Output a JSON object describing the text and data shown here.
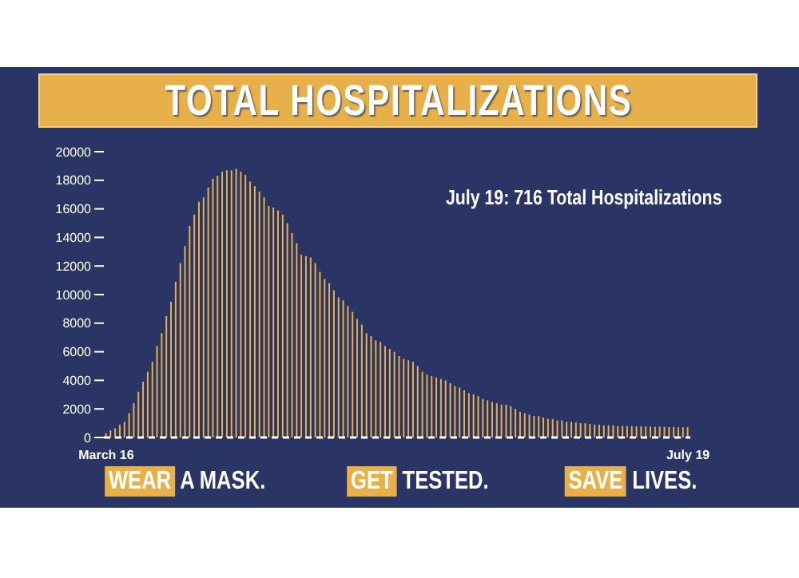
{
  "chart_data": {
    "type": "bar",
    "title": "TOTAL HOSPITALIZATIONS",
    "categories": [
      "March 16",
      null,
      null,
      null,
      null,
      null,
      null,
      null,
      null,
      null,
      null,
      null,
      null,
      null,
      null,
      null,
      null,
      null,
      null,
      null,
      null,
      null,
      null,
      null,
      null,
      null,
      null,
      null,
      null,
      null,
      null,
      null,
      null,
      null,
      null,
      null,
      null,
      null,
      null,
      null,
      null,
      null,
      null,
      null,
      null,
      null,
      null,
      null,
      null,
      null,
      null,
      null,
      null,
      null,
      null,
      null,
      null,
      null,
      null,
      null,
      null,
      null,
      null,
      null,
      null,
      null,
      null,
      null,
      null,
      null,
      null,
      null,
      null,
      null,
      null,
      null,
      null,
      null,
      null,
      null,
      null,
      null,
      null,
      null,
      null,
      null,
      null,
      null,
      null,
      null,
      null,
      null,
      null,
      null,
      null,
      null,
      null,
      null,
      null,
      null,
      null,
      null,
      null,
      null,
      null,
      null,
      null,
      null,
      null,
      null,
      null,
      null,
      null,
      null,
      null,
      null,
      null,
      null,
      null,
      null,
      null,
      null,
      null,
      null,
      null,
      "July 19"
    ],
    "values": [
      300,
      500,
      650,
      900,
      1100,
      1700,
      2400,
      3200,
      3900,
      4600,
      5300,
      6400,
      7300,
      8500,
      9500,
      10900,
      12200,
      13400,
      14800,
      15600,
      16500,
      16800,
      17500,
      18100,
      18300,
      18600,
      18700,
      18700,
      18800,
      18600,
      18400,
      17900,
      17600,
      17200,
      16800,
      16200,
      16100,
      15900,
      15600,
      15000,
      14300,
      13600,
      12800,
      12700,
      12600,
      12200,
      11600,
      11100,
      10800,
      10300,
      9800,
      9600,
      9200,
      8800,
      8300,
      7900,
      7300,
      7100,
      6800,
      6700,
      6400,
      6200,
      6000,
      5700,
      5500,
      5400,
      5300,
      5000,
      4600,
      4400,
      4300,
      4200,
      4100,
      4000,
      3800,
      3600,
      3500,
      3300,
      3100,
      3000,
      2900,
      2700,
      2600,
      2500,
      2400,
      2300,
      2300,
      2200,
      2000,
      1800,
      1700,
      1600,
      1500,
      1500,
      1400,
      1300,
      1300,
      1200,
      1200,
      1100,
      1100,
      1050,
      1000,
      1000,
      950,
      900,
      900,
      850,
      850,
      850,
      800,
      800,
      800,
      800,
      780,
      780,
      770,
      760,
      750,
      750,
      740,
      730,
      730,
      720,
      720,
      716
    ],
    "color": "#e8b04a",
    "ylim": [
      0,
      20000
    ],
    "yticks": [
      0,
      2000,
      4000,
      6000,
      8000,
      10000,
      12000,
      14000,
      16000,
      18000,
      20000
    ],
    "annotations": [
      "July 19: 716 Total Hospitalizations",
      "WEAR A MASK.",
      "GET TESTED.",
      "SAVE LIVES."
    ]
  }
}
